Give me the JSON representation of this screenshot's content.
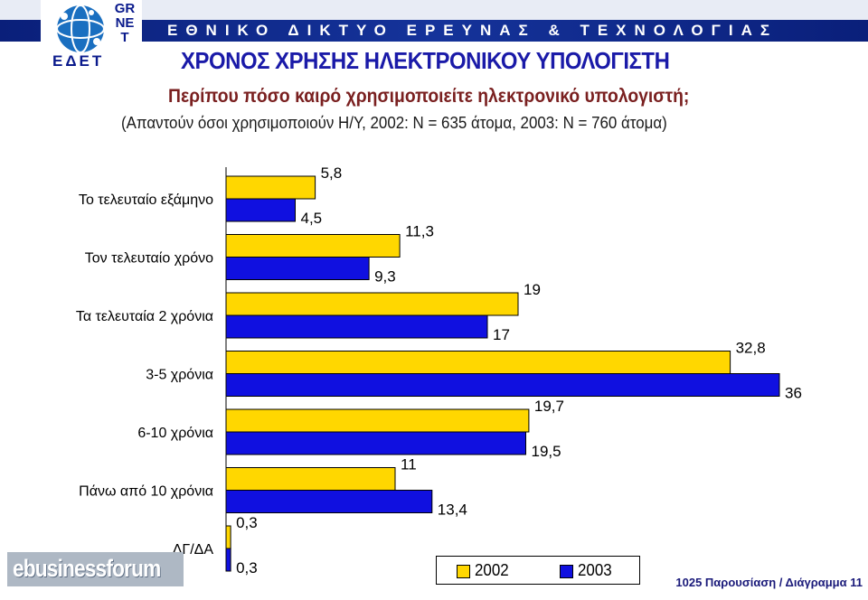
{
  "header": {
    "banner_text": "ΕΘΝΙΚΟ ΔΙΚΤΥΟ ΕΡΕΥΝΑΣ & ΤΕΧΝΟΛΟΓΙΑΣ",
    "logo_grnet": "GRNET",
    "logo_edet": "ΕΔΕΤ",
    "banner_color": "#0a1f7a"
  },
  "footer": {
    "logo_text": "ebusinessforum",
    "slide_text": "1025 Παρουσίαση / Διάγραμμα 11"
  },
  "chart_data": {
    "type": "bar",
    "orientation": "horizontal",
    "title": "ΧΡΟΝΟΣ ΧΡΗΣΗΣ ΗΛΕΚΤΡΟΝΙΚΟΥ ΥΠΟΛΟΓΙΣΤΗ",
    "subtitle": "Περίπου πόσο καιρό χρησιμοποιείτε ηλεκτρονικό υπολογιστή;",
    "note": "(Απαντούν όσοι χρησιμοποιούν Η/Υ, 2002: Ν = 635 άτομα, 2003: Ν = 760 άτομα)",
    "categories": [
      "Το τελευταίο εξάμηνο",
      "Τον τελευταίο χρόνο",
      "Τα τελευταία 2 χρόνια",
      "3-5 χρόνια",
      "6-10 χρόνια",
      "Πάνω από 10 χρόνια",
      "ΔΓ/ΔΑ"
    ],
    "series": [
      {
        "name": "2002",
        "color": "#ffd700",
        "values": [
          5.8,
          11.3,
          19,
          32.8,
          19.7,
          11,
          0.3
        ],
        "labels": [
          "5,8",
          "11,3",
          "19",
          "32,8",
          "19,7",
          "11",
          "0,3"
        ]
      },
      {
        "name": "2003",
        "color": "#1010e0",
        "values": [
          4.5,
          9.3,
          17,
          36,
          19.5,
          13.4,
          0.3
        ],
        "labels": [
          "4,5",
          "9,3",
          "17",
          "36",
          "19,5",
          "13,4",
          "0,3"
        ]
      }
    ],
    "xlim": [
      0,
      36
    ],
    "grid": false,
    "legend": "bottom"
  }
}
